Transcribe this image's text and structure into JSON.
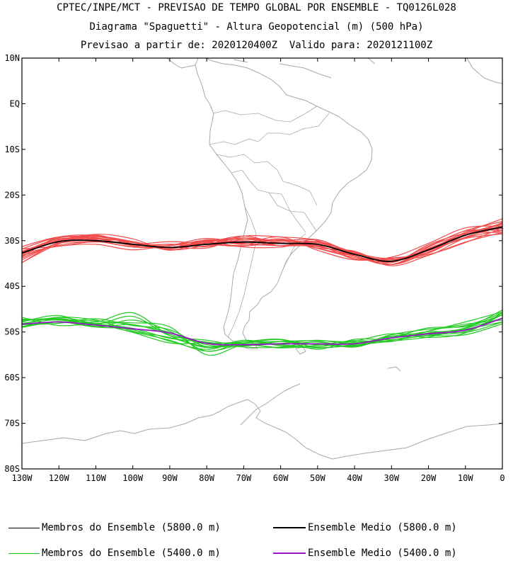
{
  "header": {
    "line1": "CPTEC/INPE/MCT - PREVISAO DE TEMPO GLOBAL POR ENSEMBLE - TQ0126L028",
    "line2": "Diagrama \"Spaguetti\" - Altura Geopotencial (m) (500 hPa)",
    "line3": "Previsao a partir de: 2020120400Z  Valido para: 2020121100Z"
  },
  "map": {
    "lon_range": [
      -130,
      0
    ],
    "lat_range": [
      -80,
      10
    ],
    "lat_ticks": [
      "10N",
      "EQ",
      "10S",
      "20S",
      "30S",
      "40S",
      "50S",
      "60S",
      "70S",
      "80S"
    ],
    "lon_ticks": [
      "130W",
      "120W",
      "110W",
      "100W",
      "90W",
      "80W",
      "70W",
      "60W",
      "50W",
      "40W",
      "30W",
      "20W",
      "10W",
      "0"
    ],
    "colors": {
      "coastline": "#a9a9a9",
      "member_5800": "#f24b4b",
      "mean_5800": "#000000",
      "member_5400": "#22c922",
      "mean_5400": "#9a14c8"
    }
  },
  "legend": {
    "members_5800": "Membros do Ensemble (5800.0 m)",
    "mean_5800": "Ensemble Medio (5800.0 m)",
    "members_5400": "Membros do Ensemble (5400.0 m)",
    "mean_5400": "Ensemble Medio (5400.0 m)"
  },
  "chart_data": {
    "type": "line",
    "x": [
      -130,
      -120,
      -110,
      -100,
      -90,
      -80,
      -70,
      -60,
      -50,
      -40,
      -30,
      -20,
      -10,
      0
    ],
    "xlim": [
      -130,
      0
    ],
    "ylim": [
      -80,
      10
    ],
    "series": [
      {
        "name": "Ensemble Medio (5800.0 m)",
        "values": [
          -32.7,
          -30.2,
          -30.0,
          -30.8,
          -31.5,
          -30.8,
          -30.3,
          -30.6,
          -30.8,
          -33.0,
          -34.5,
          -32.0,
          -28.8,
          -27.0
        ]
      },
      {
        "name": "Ensemble Medio (5400.0 m)",
        "values": [
          -48.3,
          -47.8,
          -48.5,
          -49.3,
          -50.2,
          -52.5,
          -52.8,
          -52.6,
          -52.6,
          -52.6,
          -51.3,
          -50.4,
          -49.6,
          -47.0
        ]
      }
    ],
    "members_5800": [
      [
        -33.8,
        -30.5,
        -29.5,
        -30.4,
        -31.5,
        -30.8,
        -29.0,
        -29.2,
        -30.0,
        -33.4,
        -34.2,
        -31.8,
        -28.2,
        -25.2
      ],
      [
        -32.3,
        -29.8,
        -29.0,
        -30.2,
        -32.0,
        -30.5,
        -30.4,
        -30.0,
        -31.6,
        -32.3,
        -35.2,
        -32.5,
        -29.2,
        -27.0
      ],
      [
        -32.8,
        -31.2,
        -30.8,
        -32.0,
        -31.0,
        -30.2,
        -31.4,
        -31.4,
        -30.2,
        -34.0,
        -33.6,
        -30.6,
        -27.2,
        -26.8
      ],
      [
        -31.3,
        -29.2,
        -29.6,
        -31.0,
        -30.8,
        -31.3,
        -29.7,
        -30.1,
        -30.3,
        -32.6,
        -35.5,
        -33.2,
        -30.3,
        -28.2
      ],
      [
        -34.8,
        -30.3,
        -28.6,
        -29.6,
        -32.1,
        -30.0,
        -30.8,
        -29.6,
        -31.7,
        -33.7,
        -34.6,
        -31.2,
        -27.8,
        -25.8
      ],
      [
        -33.3,
        -31.0,
        -30.2,
        -31.4,
        -31.4,
        -31.6,
        -29.4,
        -31.1,
        -30.2,
        -32.7,
        -34.0,
        -33.2,
        -29.4,
        -27.8
      ],
      [
        -32.5,
        -29.6,
        -29.9,
        -30.8,
        -30.2,
        -30.7,
        -31.1,
        -30.6,
        -31.2,
        -33.3,
        -35.2,
        -31.7,
        -28.7,
        -26.4
      ],
      [
        -34.2,
        -30.6,
        -30.3,
        -30.4,
        -31.8,
        -29.8,
        -30.4,
        -29.2,
        -32.1,
        -34.2,
        -33.8,
        -32.6,
        -28.2,
        -27.4
      ],
      [
        -31.8,
        -29.2,
        -28.9,
        -30.7,
        -31.5,
        -30.2,
        -29.7,
        -30.4,
        -30.9,
        -32.5,
        -34.8,
        -30.9,
        -28.4,
        -28.2
      ],
      [
        -32.9,
        -30.1,
        -29.7,
        -30.2,
        -32.0,
        -31.1,
        -30.0,
        -31.1,
        -29.8,
        -33.3,
        -35.2,
        -31.9,
        -29.4,
        -26.0
      ],
      [
        -33.2,
        -29.4,
        -29.4,
        -31.1,
        -31.5,
        -30.1,
        -29.4,
        -30.0,
        -29.8,
        -32.8,
        -34.2,
        -32.7,
        -28.8,
        -26.8
      ],
      [
        -31.8,
        -31.2,
        -30.2,
        -30.8,
        -31.1,
        -29.9,
        -30.7,
        -31.1,
        -31.0,
        -34.0,
        -33.8,
        -33.0,
        -30.4,
        -27.2
      ],
      [
        -34.8,
        -30.7,
        -28.8,
        -30.8,
        -30.8,
        -30.8,
        -31.2,
        -29.8,
        -31.7,
        -33.4,
        -35.2,
        -31.4,
        -27.9,
        -27.8
      ],
      [
        -32.5,
        -30.0,
        -29.2,
        -30.2,
        -31.6,
        -30.4,
        -29.0,
        -30.6,
        -30.5,
        -32.9,
        -34.6,
        -31.2,
        -28.5,
        -26.2
      ],
      [
        -33.6,
        -29.2,
        -30.0,
        -31.3,
        -31.0,
        -29.5,
        -30.6,
        -31.1,
        -31.3,
        -33.4,
        -35.2,
        -32.2,
        -29.5,
        -28.5
      ]
    ],
    "members_5400": [
      [
        -47.2,
        -47.4,
        -47.8,
        -45.8,
        -50.8,
        -53.2,
        -52.4,
        -52.1,
        -52.8,
        -52.4,
        -51.8,
        -49.8,
        -47.8,
        -45.6
      ],
      [
        -48.3,
        -46.8,
        -48.2,
        -49.2,
        -51.4,
        -52.2,
        -53.3,
        -53.3,
        -52.1,
        -53.3,
        -51.0,
        -50.8,
        -49.2,
        -47.0
      ],
      [
        -47.8,
        -46.4,
        -48.8,
        -47.4,
        -49.8,
        -54.2,
        -52.1,
        -52.8,
        -53.2,
        -52.0,
        -50.4,
        -51.2,
        -50.2,
        -45.8
      ],
      [
        -48.8,
        -47.8,
        -48.2,
        -50.1,
        -52.4,
        -52.4,
        -52.4,
        -51.7,
        -53.8,
        -51.6,
        -51.7,
        -50.7,
        -49.4,
        -47.8
      ],
      [
        -46.8,
        -48.6,
        -48.1,
        -48.0,
        -48.9,
        -55.0,
        -52.8,
        -53.4,
        -52.5,
        -53.1,
        -51.3,
        -49.1,
        -48.8,
        -46.2
      ],
      [
        -48.2,
        -46.8,
        -47.4,
        -49.8,
        -51.2,
        -53.4,
        -52.6,
        -52.5,
        -51.8,
        -52.6,
        -50.9,
        -50.8,
        -50.6,
        -48.2
      ],
      [
        -49.0,
        -47.8,
        -48.9,
        -48.4,
        -50.5,
        -52.4,
        -52.1,
        -51.6,
        -53.4,
        -52.7,
        -51.4,
        -50.2,
        -49.1,
        -45.2
      ],
      [
        -47.4,
        -47.2,
        -48.3,
        -50.0,
        -51.8,
        -54.2,
        -52.8,
        -53.5,
        -52.9,
        -51.9,
        -52.1,
        -49.8,
        -48.3,
        -47.4
      ],
      [
        -48.4,
        -48.1,
        -47.1,
        -48.6,
        -49.5,
        -53.2,
        -51.8,
        -52.7,
        -52.2,
        -53.3,
        -50.6,
        -50.5,
        -49.9,
        -46.2
      ],
      [
        -47.6,
        -47.0,
        -48.3,
        -46.6,
        -50.8,
        -51.8,
        -53.0,
        -52.1,
        -51.9,
        -52.2,
        -51.4,
        -49.9,
        -50.1,
        -47.8
      ],
      [
        -48.8,
        -47.7,
        -48.9,
        -49.5,
        -52.0,
        -53.8,
        -52.1,
        -53.0,
        -53.5,
        -52.9,
        -52.0,
        -51.1,
        -49.1,
        -46.2
      ],
      [
        -48.1,
        -47.3,
        -47.6,
        -48.4,
        -50.1,
        -52.8,
        -53.1,
        -52.1,
        -52.7,
        -53.0,
        -50.6,
        -49.4,
        -48.6,
        -45.8
      ]
    ]
  }
}
